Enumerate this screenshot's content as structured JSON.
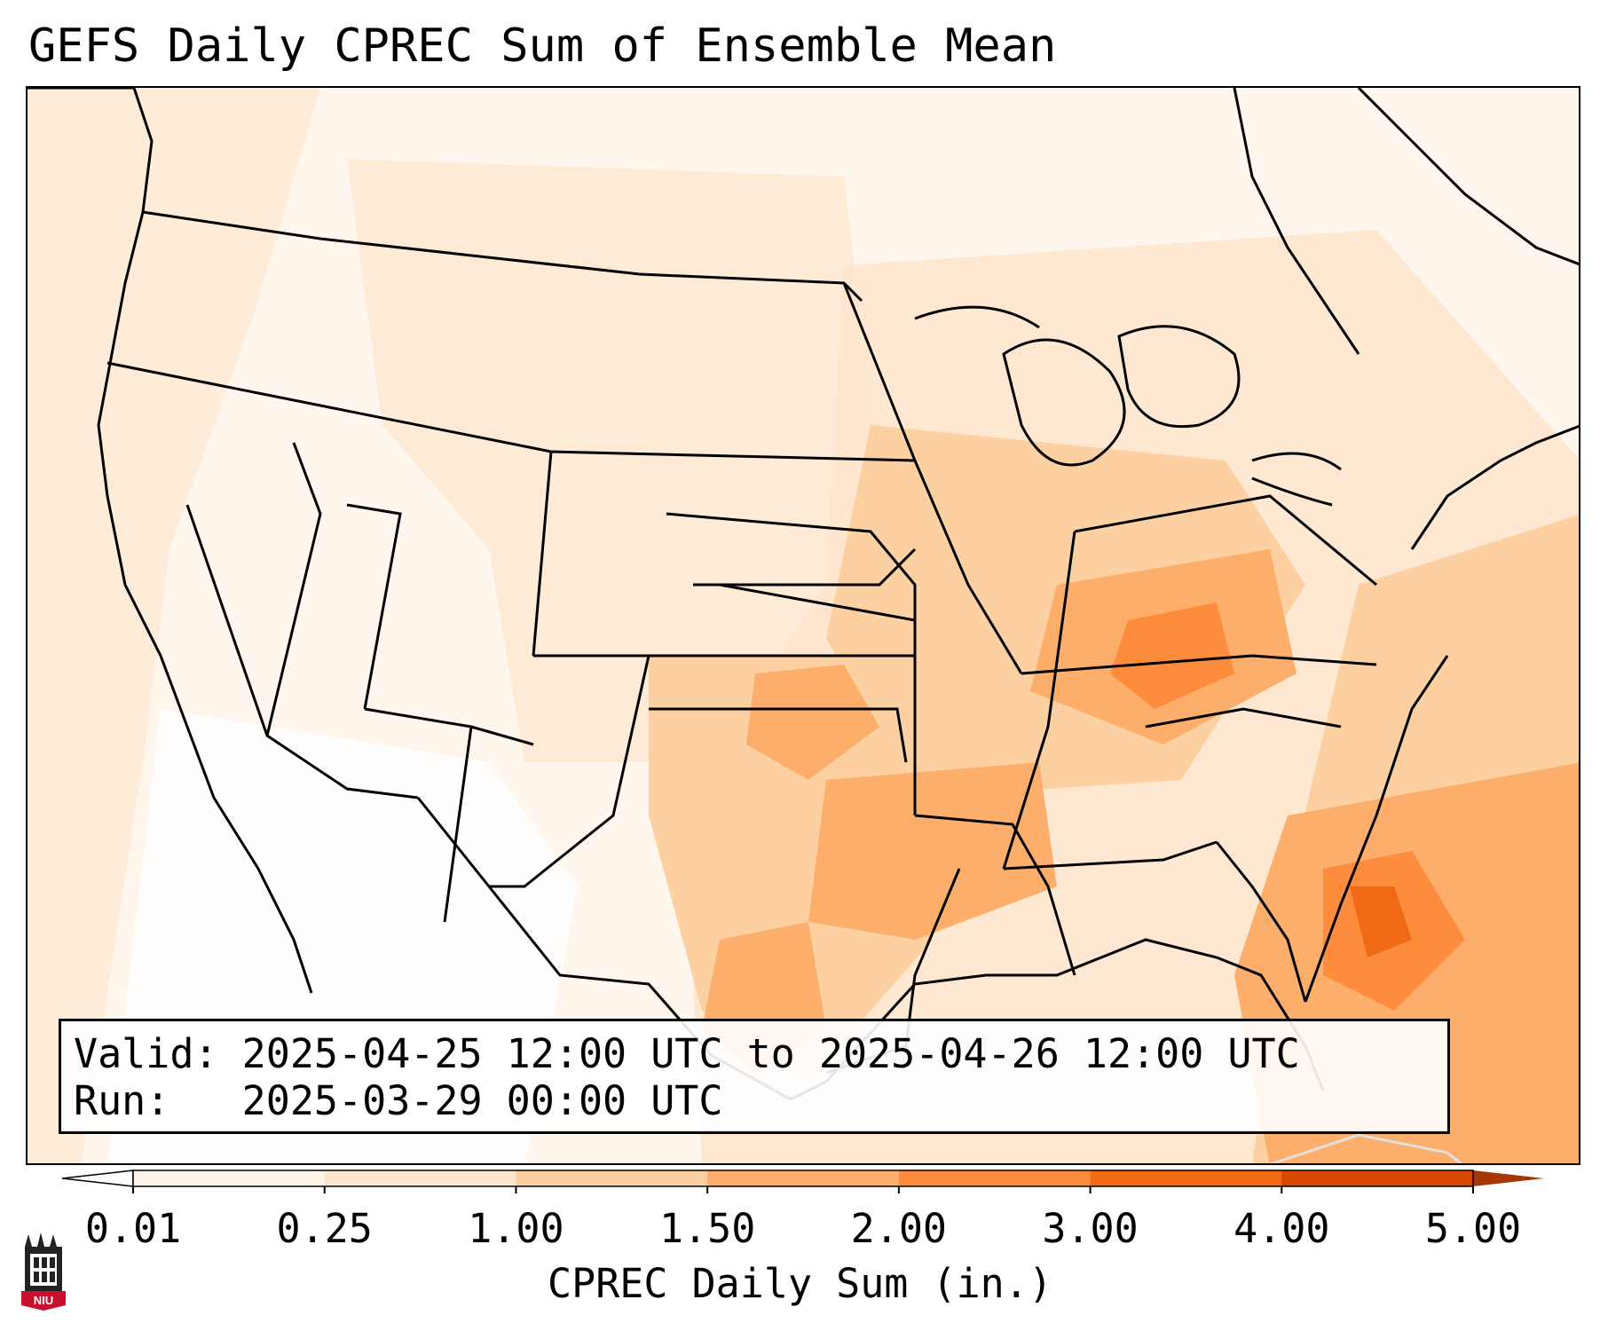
{
  "title": "GEFS Daily CPREC Sum of Ensemble Mean",
  "info": {
    "valid": "Valid: 2025-04-25 12:00 UTC to 2025-04-26 12:00 UTC",
    "run": "Run:   2025-03-29 00:00 UTC"
  },
  "colorbar": {
    "label": "CPREC Daily Sum (in.)",
    "ticks": [
      "0.01",
      "0.25",
      "1.00",
      "1.50",
      "2.00",
      "3.00",
      "4.00",
      "5.00"
    ],
    "colors": [
      "#fff5eb",
      "#fee6ce",
      "#fdd0a2",
      "#fdae6b",
      "#fd8d3c",
      "#f16913",
      "#d94801"
    ],
    "under_color": "#ffffff",
    "over_color": "#a63603"
  },
  "logo": {
    "text": "NIU"
  },
  "chart_data": {
    "type": "heatmap",
    "title": "GEFS Daily CPREC Sum of Ensemble Mean",
    "variable": "CPREC Daily Sum (in.)",
    "levels": [
      0.01,
      0.25,
      1.0,
      1.5,
      2.0,
      3.0,
      4.0,
      5.0
    ]
  }
}
